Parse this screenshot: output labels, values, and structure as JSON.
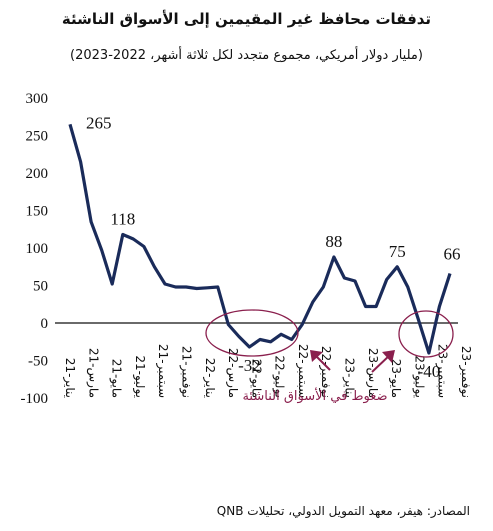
{
  "header": {
    "title": "تدفقات محافظ غير المقيمين إلى الأسواق الناشئة",
    "subtitle": "(مليار دولار أمريكي، مجموع متجدد لكل ثلاثة أشهر، 2022-2023)",
    "source": "المصادر: هيفر، معهد التمويل الدولي، تحليلات QNB"
  },
  "chart_data": {
    "type": "line",
    "title": "تدفقات محافظ غير المقيمين إلى الأسواق الناشئة",
    "subtitle": "(مليار دولار أمريكي، مجموع متجدد لكل ثلاثة أشهر، 2022-2023)",
    "xlabel": "",
    "ylabel": "",
    "ylim": [
      -100,
      300
    ],
    "yticks": [
      "300",
      "250",
      "200",
      "150",
      "100",
      "50",
      "0",
      "-50",
      "-100"
    ],
    "grid": false,
    "x_tick_labels": [
      "يناير-21",
      "مارس-21",
      "مايو-21",
      "يوليو-21",
      "سبتمبر-21",
      "نوفمبر-21",
      "يناير-22",
      "مارس-22",
      "مايو-22",
      "يوليو-22",
      "سبتمبر-22",
      "نوفمبر-22",
      "يناير-23",
      "مارس-23",
      "مايو-23",
      "يوليو-23",
      "سبتمبر-23",
      "نوفمبر-23"
    ],
    "color": "#1a2b5a",
    "values": [
      265,
      215,
      135,
      97,
      52,
      118,
      112,
      102,
      75,
      52,
      48,
      48,
      46,
      47,
      48,
      -2,
      -18,
      -32,
      -22,
      -25,
      -15,
      -22,
      -2,
      28,
      48,
      88,
      60,
      56,
      22,
      22,
      58,
      75,
      48,
      5,
      -40,
      22,
      66
    ],
    "data_labels": [
      {
        "index": 0,
        "text": "265"
      },
      {
        "index": 5,
        "text": "118"
      },
      {
        "index": 17,
        "text": "-32"
      },
      {
        "index": 25,
        "text": "88"
      },
      {
        "index": 31,
        "text": "75"
      },
      {
        "index": 34,
        "text": "-40"
      },
      {
        "index": 36,
        "text": "66"
      }
    ],
    "annotation": "ضغوط في الأسواق الناشئة",
    "annotation_color": "#8a1f4d"
  }
}
